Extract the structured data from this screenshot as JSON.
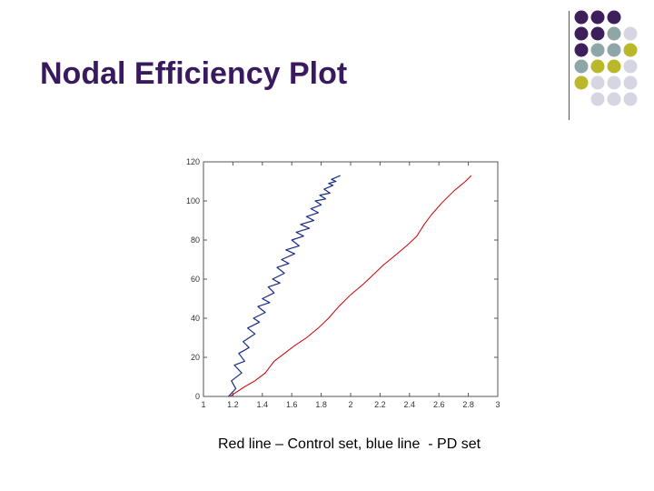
{
  "slide": {
    "title": "Nodal Efficiency Plot",
    "caption": "Red line – Control set, blue line  - PD set"
  },
  "decor": {
    "colors": [
      "#3d1f5c",
      "#8fa6a8",
      "#b8b82a",
      "#d6d6e2"
    ],
    "dot_pattern": [
      [
        0,
        0,
        0,
        null
      ],
      [
        0,
        0,
        1,
        3
      ],
      [
        0,
        1,
        1,
        2
      ],
      [
        1,
        2,
        2,
        3
      ],
      [
        2,
        3,
        3,
        3
      ],
      [
        null,
        3,
        3,
        3
      ]
    ]
  },
  "chart_data": {
    "type": "line",
    "xlim": [
      1,
      3
    ],
    "ylim": [
      0,
      120
    ],
    "xticks": [
      "1",
      "1.2",
      "1.4",
      "1.6",
      "1.8",
      "2",
      "2.2",
      "2.4",
      "2.6",
      "2.8",
      "3"
    ],
    "yticks": [
      "0",
      "20",
      "40",
      "60",
      "80",
      "100",
      "120"
    ],
    "grid": false,
    "series": [
      {
        "color": "#cc0000",
        "x": [
          1.18,
          1.22,
          1.28,
          1.35,
          1.42,
          1.48,
          1.55,
          1.62,
          1.7,
          1.78,
          1.85,
          1.92,
          2.0,
          2.08,
          2.15,
          2.22,
          2.3,
          2.38,
          2.45,
          2.5,
          2.55,
          2.62,
          2.7,
          2.78,
          2.82
        ],
        "y": [
          0,
          2,
          5,
          8,
          12,
          18,
          22,
          26,
          30,
          35,
          40,
          46,
          52,
          57,
          62,
          67,
          72,
          77,
          82,
          88,
          93,
          99,
          105,
          110,
          113
        ]
      },
      {
        "color": "#1a2a8a",
        "x": [
          1.17,
          1.22,
          1.19,
          1.26,
          1.21,
          1.28,
          1.24,
          1.31,
          1.27,
          1.35,
          1.3,
          1.38,
          1.34,
          1.42,
          1.37,
          1.45,
          1.4,
          1.48,
          1.44,
          1.52,
          1.47,
          1.55,
          1.5,
          1.58,
          1.53,
          1.62,
          1.56,
          1.65,
          1.6,
          1.68,
          1.63,
          1.72,
          1.66,
          1.75,
          1.7,
          1.78,
          1.73,
          1.8,
          1.76,
          1.83,
          1.79,
          1.86,
          1.82,
          1.88,
          1.85,
          1.9,
          1.87,
          1.93
        ],
        "y": [
          0,
          4,
          8,
          12,
          16,
          18,
          22,
          25,
          28,
          32,
          35,
          38,
          40,
          43,
          46,
          48,
          50,
          53,
          56,
          58,
          60,
          63,
          66,
          68,
          70,
          73,
          75,
          77,
          80,
          82,
          84,
          86,
          88,
          90,
          92,
          94,
          96,
          98,
          100,
          101,
          103,
          104,
          106,
          108,
          109,
          110,
          111,
          113
        ]
      }
    ]
  }
}
